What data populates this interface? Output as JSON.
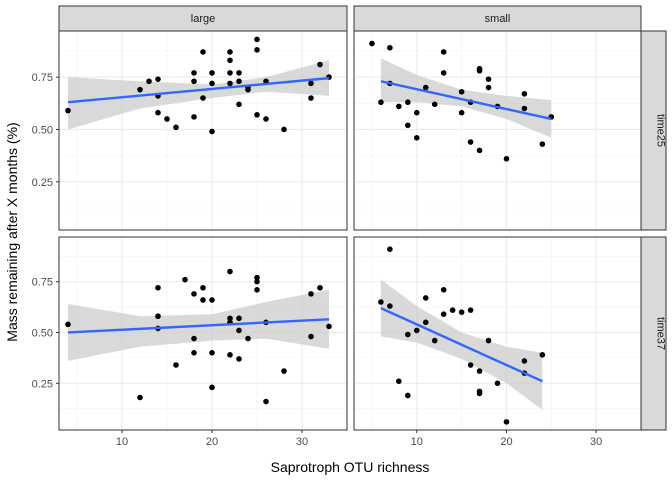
{
  "chart_data": {
    "type": "scatter",
    "xlabel": "Saprotroph OTU richness",
    "ylabel": "Mass remaining after X months (%)",
    "xlim": [
      3,
      35
    ],
    "ylim": [
      0.02,
      0.97
    ],
    "x_ticks": [
      10,
      20,
      30
    ],
    "y_ticks": [
      0.25,
      0.5,
      0.75
    ],
    "y_tick_labels": [
      "0.25",
      "0.50",
      "0.75"
    ],
    "columns": [
      "large",
      "small"
    ],
    "rows": [
      "time25",
      "time37"
    ],
    "grid": true,
    "point_color": "#000000",
    "line_color": "#3366ff",
    "band_color": "#cccccc",
    "strip_fill": "#d9d9d9",
    "panels": [
      {
        "column": "large",
        "row": "time25",
        "points": [
          [
            4,
            0.59
          ],
          [
            12,
            0.69
          ],
          [
            13,
            0.73
          ],
          [
            14,
            0.74
          ],
          [
            14,
            0.66
          ],
          [
            14,
            0.58
          ],
          [
            15,
            0.55
          ],
          [
            16,
            0.51
          ],
          [
            18,
            0.56
          ],
          [
            18,
            0.73
          ],
          [
            18,
            0.77
          ],
          [
            19,
            0.65
          ],
          [
            19,
            0.87
          ],
          [
            20,
            0.49
          ],
          [
            20,
            0.72
          ],
          [
            20,
            0.77
          ],
          [
            22,
            0.77
          ],
          [
            22,
            0.83
          ],
          [
            22,
            0.87
          ],
          [
            22,
            0.72
          ],
          [
            23,
            0.62
          ],
          [
            23,
            0.73
          ],
          [
            23,
            0.77
          ],
          [
            24,
            0.69
          ],
          [
            24,
            0.7
          ],
          [
            25,
            0.88
          ],
          [
            25,
            0.93
          ],
          [
            25,
            0.57
          ],
          [
            26,
            0.55
          ],
          [
            26,
            0.73
          ],
          [
            28,
            0.5
          ],
          [
            31,
            0.65
          ],
          [
            31,
            0.72
          ],
          [
            32,
            0.81
          ],
          [
            33,
            0.75
          ]
        ],
        "fit": {
          "x": [
            4,
            33
          ],
          "y": [
            0.63,
            0.745
          ]
        },
        "band": {
          "x": [
            4,
            12,
            20,
            26,
            33
          ],
          "lower": [
            0.5,
            0.6,
            0.65,
            0.68,
            0.66
          ],
          "upper": [
            0.75,
            0.73,
            0.715,
            0.75,
            0.83
          ]
        }
      },
      {
        "column": "small",
        "row": "time25",
        "points": [
          [
            5,
            0.91
          ],
          [
            6,
            0.63
          ],
          [
            7,
            0.89
          ],
          [
            7,
            0.72
          ],
          [
            8,
            0.61
          ],
          [
            9,
            0.52
          ],
          [
            9,
            0.63
          ],
          [
            10,
            0.46
          ],
          [
            10,
            0.58
          ],
          [
            11,
            0.7
          ],
          [
            12,
            0.62
          ],
          [
            13,
            0.77
          ],
          [
            13,
            0.87
          ],
          [
            15,
            0.68
          ],
          [
            15,
            0.58
          ],
          [
            16,
            0.63
          ],
          [
            16,
            0.44
          ],
          [
            17,
            0.78
          ],
          [
            17,
            0.79
          ],
          [
            17,
            0.4
          ],
          [
            18,
            0.7
          ],
          [
            18,
            0.74
          ],
          [
            19,
            0.61
          ],
          [
            20,
            0.36
          ],
          [
            22,
            0.67
          ],
          [
            22,
            0.6
          ],
          [
            24,
            0.43
          ],
          [
            25,
            0.56
          ]
        ],
        "fit": {
          "x": [
            6,
            25
          ],
          "y": [
            0.73,
            0.55
          ]
        },
        "band": {
          "x": [
            6,
            10,
            15,
            20,
            25
          ],
          "lower": [
            0.63,
            0.63,
            0.61,
            0.55,
            0.46
          ],
          "upper": [
            0.84,
            0.76,
            0.69,
            0.66,
            0.64
          ]
        }
      },
      {
        "column": "large",
        "row": "time37",
        "points": [
          [
            4,
            0.54
          ],
          [
            12,
            0.18
          ],
          [
            14,
            0.72
          ],
          [
            14,
            0.58
          ],
          [
            14,
            0.52
          ],
          [
            16,
            0.34
          ],
          [
            17,
            0.76
          ],
          [
            18,
            0.4
          ],
          [
            18,
            0.47
          ],
          [
            18,
            0.69
          ],
          [
            19,
            0.66
          ],
          [
            19,
            0.72
          ],
          [
            20,
            0.66
          ],
          [
            20,
            0.4
          ],
          [
            20,
            0.23
          ],
          [
            22,
            0.8
          ],
          [
            22,
            0.57
          ],
          [
            22,
            0.55
          ],
          [
            22,
            0.39
          ],
          [
            23,
            0.57
          ],
          [
            23,
            0.51
          ],
          [
            23,
            0.37
          ],
          [
            24,
            0.47
          ],
          [
            25,
            0.71
          ],
          [
            25,
            0.75
          ],
          [
            25,
            0.77
          ],
          [
            26,
            0.55
          ],
          [
            26,
            0.16
          ],
          [
            28,
            0.31
          ],
          [
            31,
            0.48
          ],
          [
            31,
            0.69
          ],
          [
            32,
            0.72
          ],
          [
            33,
            0.53
          ]
        ],
        "fit": {
          "x": [
            4,
            33
          ],
          "y": [
            0.5,
            0.565
          ]
        },
        "band": {
          "x": [
            4,
            12,
            20,
            26,
            33
          ],
          "lower": [
            0.36,
            0.43,
            0.46,
            0.47,
            0.42
          ],
          "upper": [
            0.64,
            0.58,
            0.59,
            0.65,
            0.71
          ]
        }
      },
      {
        "column": "small",
        "row": "time37",
        "points": [
          [
            6,
            0.65
          ],
          [
            7,
            0.91
          ],
          [
            7,
            0.63
          ],
          [
            8,
            0.26
          ],
          [
            9,
            0.49
          ],
          [
            9,
            0.19
          ],
          [
            10,
            0.51
          ],
          [
            11,
            0.67
          ],
          [
            11,
            0.55
          ],
          [
            12,
            0.46
          ],
          [
            13,
            0.71
          ],
          [
            13,
            0.59
          ],
          [
            14,
            0.61
          ],
          [
            15,
            0.6
          ],
          [
            16,
            0.61
          ],
          [
            16,
            0.34
          ],
          [
            17,
            0.2
          ],
          [
            17,
            0.21
          ],
          [
            17,
            0.31
          ],
          [
            18,
            0.46
          ],
          [
            19,
            0.25
          ],
          [
            20,
            0.06
          ],
          [
            22,
            0.36
          ],
          [
            22,
            0.3
          ],
          [
            24,
            0.39
          ]
        ],
        "fit": {
          "x": [
            6,
            24
          ],
          "y": [
            0.62,
            0.26
          ]
        },
        "band": {
          "x": [
            6,
            10,
            15,
            20,
            24
          ],
          "lower": [
            0.48,
            0.45,
            0.37,
            0.25,
            0.12
          ],
          "upper": [
            0.76,
            0.63,
            0.5,
            0.43,
            0.4
          ]
        }
      }
    ]
  }
}
